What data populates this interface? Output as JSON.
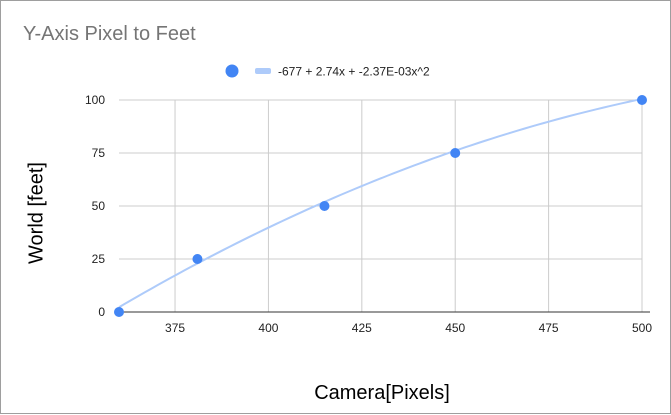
{
  "chart_data": {
    "type": "scatter",
    "title": "Y-Axis Pixel to Feet",
    "xlabel": "Camera[Pixels]",
    "ylabel": "World [feet]",
    "xlim": [
      360,
      500
    ],
    "ylim": [
      0,
      100
    ],
    "x_ticks": [
      375,
      400,
      425,
      450,
      475,
      500
    ],
    "y_ticks": [
      0,
      25,
      50,
      75,
      100
    ],
    "grid": true,
    "legend_position": "top",
    "points": [
      {
        "x": 360,
        "y": 0
      },
      {
        "x": 381,
        "y": 25
      },
      {
        "x": 415,
        "y": 50
      },
      {
        "x": 450,
        "y": 75
      },
      {
        "x": 500,
        "y": 100
      }
    ],
    "trendline": {
      "type": "polynomial",
      "label": "-677 + 2.74x + -2.37E-03x^2",
      "coefficients": [
        -677,
        2.74,
        -0.00237
      ]
    },
    "colors": {
      "point": "#4285f4",
      "trendline": "#aecbfa",
      "grid": "#cccccc",
      "axis": "#333333"
    }
  }
}
